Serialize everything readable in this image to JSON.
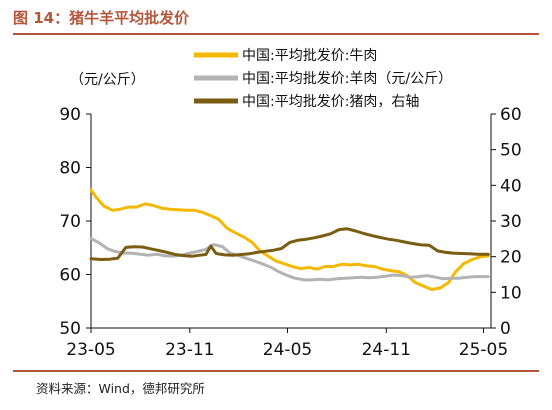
{
  "figure": {
    "title": "图 14：猪牛羊平均批发价",
    "source": "资料来源：Wind，德邦研究所"
  },
  "chart_data": {
    "type": "line",
    "left_unit_label": "（元/公斤）",
    "xlim": [
      "2023-05-01",
      "2025-05-15"
    ],
    "x_ticks": [
      {
        "date": "2023-05-01",
        "label": "23-05"
      },
      {
        "date": "2023-11-01",
        "label": "23-11"
      },
      {
        "date": "2024-05-01",
        "label": "24-05"
      },
      {
        "date": "2024-11-01",
        "label": "24-11"
      },
      {
        "date": "2025-05-01",
        "label": "25-05"
      }
    ],
    "y_left": {
      "min": 50,
      "max": 90,
      "ticks": [
        50,
        60,
        70,
        80,
        90
      ]
    },
    "y_right": {
      "min": 0,
      "max": 60,
      "ticks": [
        0,
        10,
        20,
        30,
        40,
        50,
        60
      ]
    },
    "legend_position": "top-right",
    "grid": false,
    "series": [
      {
        "name": "中国:平均批发价:牛肉",
        "axis": "left",
        "color": "#f5b800",
        "points": [
          [
            "2023-05-01",
            75.8
          ],
          [
            "2023-05-10",
            74.5
          ],
          [
            "2023-05-25",
            72.8
          ],
          [
            "2023-06-10",
            72.0
          ],
          [
            "2023-06-25",
            72.2
          ],
          [
            "2023-07-10",
            72.6
          ],
          [
            "2023-07-25",
            72.6
          ],
          [
            "2023-08-10",
            73.2
          ],
          [
            "2023-08-25",
            72.9
          ],
          [
            "2023-09-10",
            72.4
          ],
          [
            "2023-09-25",
            72.2
          ],
          [
            "2023-10-10",
            72.1
          ],
          [
            "2023-10-25",
            72.0
          ],
          [
            "2023-11-10",
            72.0
          ],
          [
            "2023-11-25",
            71.6
          ],
          [
            "2023-12-10",
            71.0
          ],
          [
            "2023-12-25",
            70.3
          ],
          [
            "2024-01-10",
            68.6
          ],
          [
            "2024-01-25",
            67.8
          ],
          [
            "2024-02-10",
            67.0
          ],
          [
            "2024-02-25",
            66.0
          ],
          [
            "2024-03-10",
            64.5
          ],
          [
            "2024-03-25",
            63.5
          ],
          [
            "2024-04-10",
            62.5
          ],
          [
            "2024-04-25",
            62.0
          ],
          [
            "2024-05-10",
            61.5
          ],
          [
            "2024-05-25",
            61.1
          ],
          [
            "2024-06-10",
            61.3
          ],
          [
            "2024-06-25",
            61.0
          ],
          [
            "2024-07-10",
            61.5
          ],
          [
            "2024-07-25",
            61.5
          ],
          [
            "2024-08-10",
            61.9
          ],
          [
            "2024-08-25",
            61.8
          ],
          [
            "2024-09-10",
            61.9
          ],
          [
            "2024-09-25",
            61.6
          ],
          [
            "2024-10-10",
            61.5
          ],
          [
            "2024-10-25",
            61.0
          ],
          [
            "2024-11-10",
            60.7
          ],
          [
            "2024-11-25",
            60.5
          ],
          [
            "2024-12-10",
            59.8
          ],
          [
            "2024-12-25",
            58.5
          ],
          [
            "2025-01-10",
            57.8
          ],
          [
            "2025-01-25",
            57.2
          ],
          [
            "2025-02-10",
            57.5
          ],
          [
            "2025-02-25",
            58.5
          ],
          [
            "2025-03-10",
            60.5
          ],
          [
            "2025-03-25",
            62.0
          ],
          [
            "2025-04-10",
            62.8
          ],
          [
            "2025-04-25",
            63.3
          ],
          [
            "2025-05-10",
            63.5
          ]
        ]
      },
      {
        "name": "中国:平均批发价:羊肉（元/公斤）",
        "axis": "left",
        "color": "#b3b3b3",
        "points": [
          [
            "2023-05-01",
            66.7
          ],
          [
            "2023-05-15",
            66.0
          ],
          [
            "2023-06-01",
            64.8
          ],
          [
            "2023-06-15",
            64.3
          ],
          [
            "2023-07-01",
            64.0
          ],
          [
            "2023-07-15",
            64.0
          ],
          [
            "2023-08-01",
            63.8
          ],
          [
            "2023-08-15",
            63.6
          ],
          [
            "2023-09-01",
            63.8
          ],
          [
            "2023-09-15",
            63.5
          ],
          [
            "2023-10-01",
            63.4
          ],
          [
            "2023-10-15",
            63.6
          ],
          [
            "2023-11-01",
            64.0
          ],
          [
            "2023-11-15",
            64.3
          ],
          [
            "2023-12-01",
            64.7
          ],
          [
            "2023-12-15",
            65.6
          ],
          [
            "2024-01-01",
            65.2
          ],
          [
            "2024-01-15",
            64.0
          ],
          [
            "2024-02-01",
            63.5
          ],
          [
            "2024-02-15",
            63.0
          ],
          [
            "2024-03-01",
            62.5
          ],
          [
            "2024-03-15",
            62.0
          ],
          [
            "2024-04-01",
            61.3
          ],
          [
            "2024-04-15",
            60.5
          ],
          [
            "2024-05-01",
            59.8
          ],
          [
            "2024-05-15",
            59.3
          ],
          [
            "2024-06-01",
            59.0
          ],
          [
            "2024-06-15",
            59.0
          ],
          [
            "2024-07-01",
            59.1
          ],
          [
            "2024-07-15",
            59.0
          ],
          [
            "2024-08-01",
            59.2
          ],
          [
            "2024-08-15",
            59.3
          ],
          [
            "2024-09-01",
            59.4
          ],
          [
            "2024-09-15",
            59.5
          ],
          [
            "2024-10-01",
            59.4
          ],
          [
            "2024-10-15",
            59.5
          ],
          [
            "2024-11-01",
            59.7
          ],
          [
            "2024-11-15",
            59.9
          ],
          [
            "2024-12-01",
            59.8
          ],
          [
            "2024-12-15",
            59.5
          ],
          [
            "2025-01-01",
            59.6
          ],
          [
            "2025-01-15",
            59.8
          ],
          [
            "2025-02-01",
            59.5
          ],
          [
            "2025-02-15",
            59.2
          ],
          [
            "2025-03-01",
            59.3
          ],
          [
            "2025-03-15",
            59.3
          ],
          [
            "2025-04-01",
            59.5
          ],
          [
            "2025-04-15",
            59.6
          ],
          [
            "2025-05-01",
            59.6
          ],
          [
            "2025-05-10",
            59.6
          ]
        ]
      },
      {
        "name": "中国:平均批发价:猪肉，右轴",
        "axis": "right",
        "color": "#7a5c12",
        "points": [
          [
            "2023-05-01",
            19.4
          ],
          [
            "2023-05-20",
            19.2
          ],
          [
            "2023-06-05",
            19.3
          ],
          [
            "2023-06-20",
            19.6
          ],
          [
            "2023-07-05",
            22.6
          ],
          [
            "2023-07-20",
            22.8
          ],
          [
            "2023-08-05",
            22.7
          ],
          [
            "2023-08-20",
            22.2
          ],
          [
            "2023-09-05",
            21.7
          ],
          [
            "2023-09-20",
            21.2
          ],
          [
            "2023-10-05",
            20.6
          ],
          [
            "2023-10-20",
            20.3
          ],
          [
            "2023-11-05",
            20.1
          ],
          [
            "2023-11-20",
            20.4
          ],
          [
            "2023-12-01",
            20.6
          ],
          [
            "2023-12-10",
            23.0
          ],
          [
            "2023-12-20",
            20.9
          ],
          [
            "2024-01-05",
            20.5
          ],
          [
            "2024-01-20",
            20.4
          ],
          [
            "2024-02-05",
            20.6
          ],
          [
            "2024-02-20",
            20.8
          ],
          [
            "2024-03-05",
            21.2
          ],
          [
            "2024-03-20",
            21.5
          ],
          [
            "2024-04-05",
            21.8
          ],
          [
            "2024-04-20",
            22.3
          ],
          [
            "2024-05-05",
            24.0
          ],
          [
            "2024-05-20",
            24.6
          ],
          [
            "2024-06-05",
            24.9
          ],
          [
            "2024-06-20",
            25.3
          ],
          [
            "2024-07-05",
            25.8
          ],
          [
            "2024-07-20",
            26.4
          ],
          [
            "2024-08-05",
            27.6
          ],
          [
            "2024-08-20",
            27.8
          ],
          [
            "2024-09-05",
            27.2
          ],
          [
            "2024-09-20",
            26.5
          ],
          [
            "2024-10-05",
            25.9
          ],
          [
            "2024-10-20",
            25.4
          ],
          [
            "2024-11-05",
            24.9
          ],
          [
            "2024-11-20",
            24.6
          ],
          [
            "2024-12-05",
            24.1
          ],
          [
            "2024-12-20",
            23.7
          ],
          [
            "2025-01-05",
            23.3
          ],
          [
            "2025-01-20",
            23.2
          ],
          [
            "2025-02-05",
            21.6
          ],
          [
            "2025-02-20",
            21.2
          ],
          [
            "2025-03-05",
            21.0
          ],
          [
            "2025-03-20",
            20.9
          ],
          [
            "2025-04-05",
            20.8
          ],
          [
            "2025-04-20",
            20.7
          ],
          [
            "2025-05-10",
            20.7
          ]
        ]
      }
    ]
  }
}
